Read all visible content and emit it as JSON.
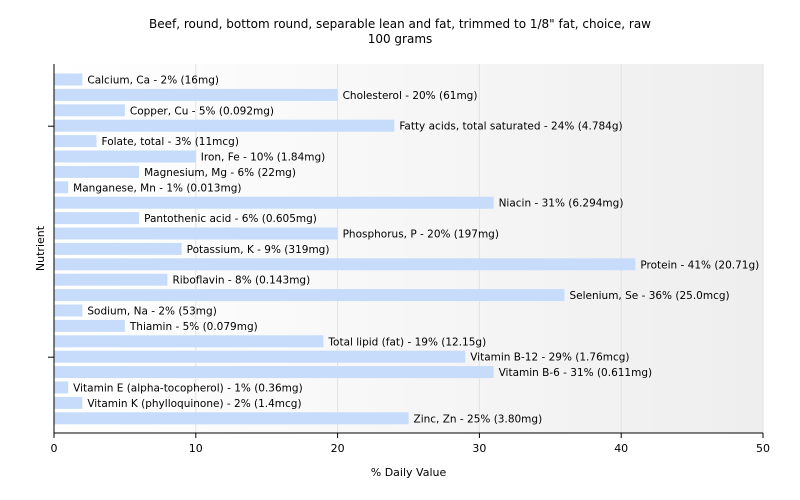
{
  "chart_data": {
    "type": "bar",
    "orientation": "horizontal",
    "title": "Beef, round, bottom round, separable lean and fat, trimmed to 1/8\" fat, choice, raw",
    "subtitle": "100 grams",
    "xlabel": "% Daily Value",
    "ylabel": "Nutrient",
    "xlim": [
      0,
      50
    ],
    "xticks": [
      0,
      10,
      20,
      30,
      40,
      50
    ],
    "bar_color": "#c6dcfa",
    "grid": true,
    "categories": [
      "Calcium, Ca",
      "Cholesterol",
      "Copper, Cu",
      "Fatty acids, total saturated",
      "Folate, total",
      "Iron, Fe",
      "Magnesium, Mg",
      "Manganese, Mn",
      "Niacin",
      "Pantothenic acid",
      "Phosphorus, P",
      "Potassium, K",
      "Protein",
      "Riboflavin",
      "Selenium, Se",
      "Sodium, Na",
      "Thiamin",
      "Total lipid (fat)",
      "Vitamin B-12",
      "Vitamin B-6",
      "Vitamin E (alpha-tocopherol)",
      "Vitamin K (phylloquinone)",
      "Zinc, Zn"
    ],
    "values": [
      2,
      20,
      5,
      24,
      3,
      10,
      6,
      1,
      31,
      6,
      20,
      9,
      41,
      8,
      36,
      2,
      5,
      19,
      29,
      31,
      1,
      2,
      25
    ],
    "labels": [
      "Calcium, Ca - 2% (16mg)",
      "Cholesterol - 20% (61mg)",
      "Copper, Cu - 5% (0.092mg)",
      "Fatty acids, total saturated - 24% (4.784g)",
      "Folate, total - 3% (11mcg)",
      "Iron, Fe - 10% (1.84mg)",
      "Magnesium, Mg - 6% (22mg)",
      "Manganese, Mn - 1% (0.013mg)",
      "Niacin - 31% (6.294mg)",
      "Pantothenic acid - 6% (0.605mg)",
      "Phosphorus, P - 20% (197mg)",
      "Potassium, K - 9% (319mg)",
      "Protein - 41% (20.71g)",
      "Riboflavin - 8% (0.143mg)",
      "Selenium, Se - 36% (25.0mcg)",
      "Sodium, Na - 2% (53mg)",
      "Thiamin - 5% (0.079mg)",
      "Total lipid (fat) - 19% (12.15g)",
      "Vitamin B-12 - 29% (1.76mcg)",
      "Vitamin B-6 - 31% (0.611mg)",
      "Vitamin E (alpha-tocopherol) - 1% (0.36mg)",
      "Vitamin K (phylloquinone) - 2% (1.4mcg)",
      "Zinc, Zn - 25% (3.80mg)"
    ]
  }
}
